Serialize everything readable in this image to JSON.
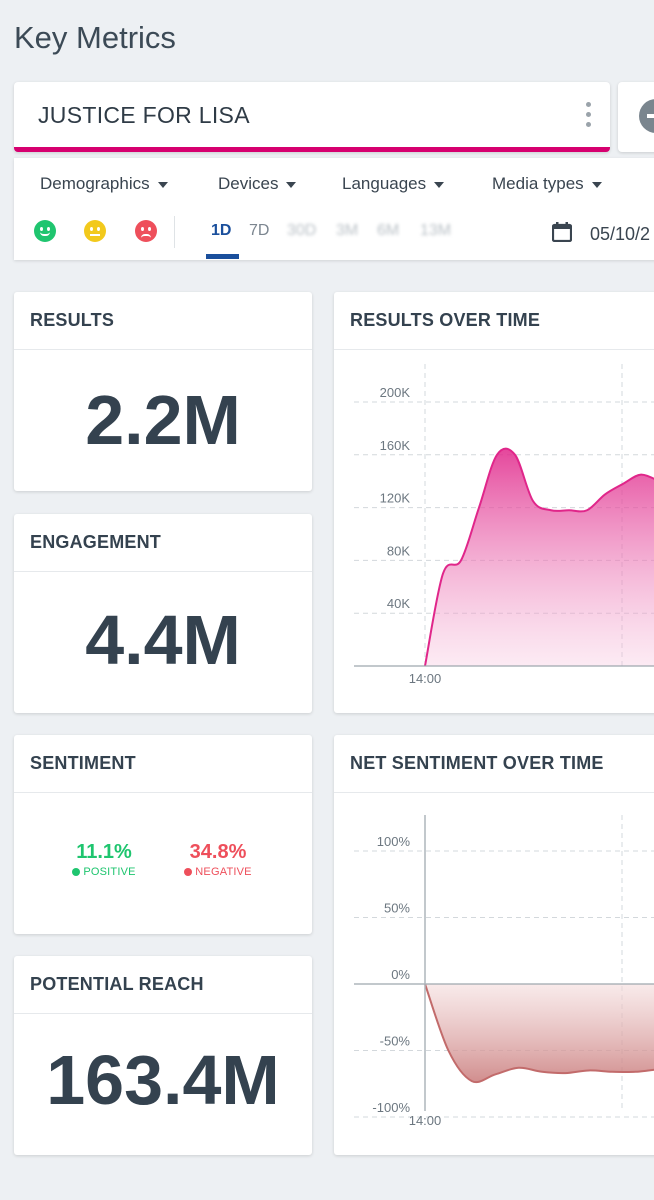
{
  "page_title": "Key Metrics",
  "search": {
    "query": "JUSTICE FOR LISA"
  },
  "filters": {
    "dropdowns": [
      "Demographics",
      "Devices",
      "Languages",
      "Media types"
    ],
    "time_ranges": [
      "1D",
      "7D",
      "30D",
      "3M",
      "6M",
      "13M"
    ],
    "active_range": "1D",
    "date": "05/10/2"
  },
  "cards": {
    "results": {
      "title": "RESULTS",
      "value": "2.2M"
    },
    "engagement": {
      "title": "ENGAGEMENT",
      "value": "4.4M"
    },
    "sentiment": {
      "title": "SENTIMENT",
      "positive_value": "11.1%",
      "positive_label": "POSITIVE",
      "negative_value": "34.8%",
      "negative_label": "NEGATIVE"
    },
    "reach": {
      "title": "POTENTIAL REACH",
      "value": "163.4M"
    },
    "results_over_time": {
      "title": "RESULTS OVER TIME"
    },
    "net_sentiment_over_time": {
      "title": "NET SENTIMENT OVER TIME"
    }
  },
  "colors": {
    "accent": "#d6006f",
    "positive": "#1fc56f",
    "neutral": "#f2c91c",
    "negative": "#ee4f5b",
    "active_range": "#1a4f9c"
  },
  "chart_data": [
    {
      "type": "area",
      "title": "RESULTS OVER TIME",
      "yticks": [
        "40K",
        "80K",
        "120K",
        "160K",
        "200K"
      ],
      "ylim": [
        0,
        200000
      ],
      "xtick": "14:00",
      "x": [
        0,
        1,
        2,
        3,
        4,
        5,
        6,
        7,
        8,
        9,
        10,
        11,
        12,
        13
      ],
      "values": [
        0,
        70000,
        80000,
        120000,
        160000,
        160000,
        125000,
        118000,
        118000,
        118000,
        130000,
        138000,
        145000,
        140000
      ],
      "color": "#e0268a",
      "grid": true
    },
    {
      "type": "area",
      "title": "NET SENTIMENT OVER TIME",
      "yticks": [
        "100%",
        "50%",
        "0%",
        "-50%",
        "-100%"
      ],
      "ylim": [
        -100,
        100
      ],
      "xtick": "14:00",
      "x": [
        0,
        1,
        2,
        3,
        4,
        5,
        6,
        7,
        8,
        9,
        10
      ],
      "values": [
        0,
        -50,
        -73,
        -68,
        -63,
        -66,
        -67,
        -65,
        -66,
        -66,
        -64
      ],
      "color": "#c26b6b",
      "grid": true
    }
  ]
}
